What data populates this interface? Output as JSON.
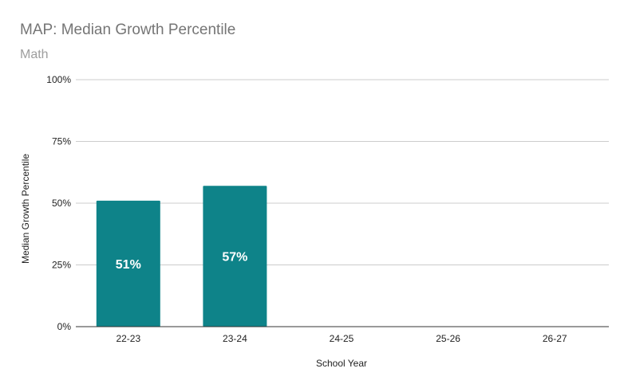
{
  "chart_data": {
    "type": "bar",
    "title": "MAP: Median Growth Percentile",
    "subtitle": "Math",
    "xlabel": "School Year",
    "ylabel": "Median Growth Percentile",
    "categories": [
      "22-23",
      "23-24",
      "24-25",
      "25-26",
      "26-27"
    ],
    "values": [
      51,
      57,
      null,
      null,
      null
    ],
    "data_labels": [
      "51%",
      "57%",
      "",
      "",
      ""
    ],
    "ylim": [
      0,
      100
    ],
    "yticks": [
      0,
      25,
      50,
      75,
      100
    ],
    "ytick_labels": [
      "0%",
      "25%",
      "50%",
      "75%",
      "100%"
    ],
    "grid": true,
    "legend": "none",
    "bar_color": "#0e8389"
  }
}
